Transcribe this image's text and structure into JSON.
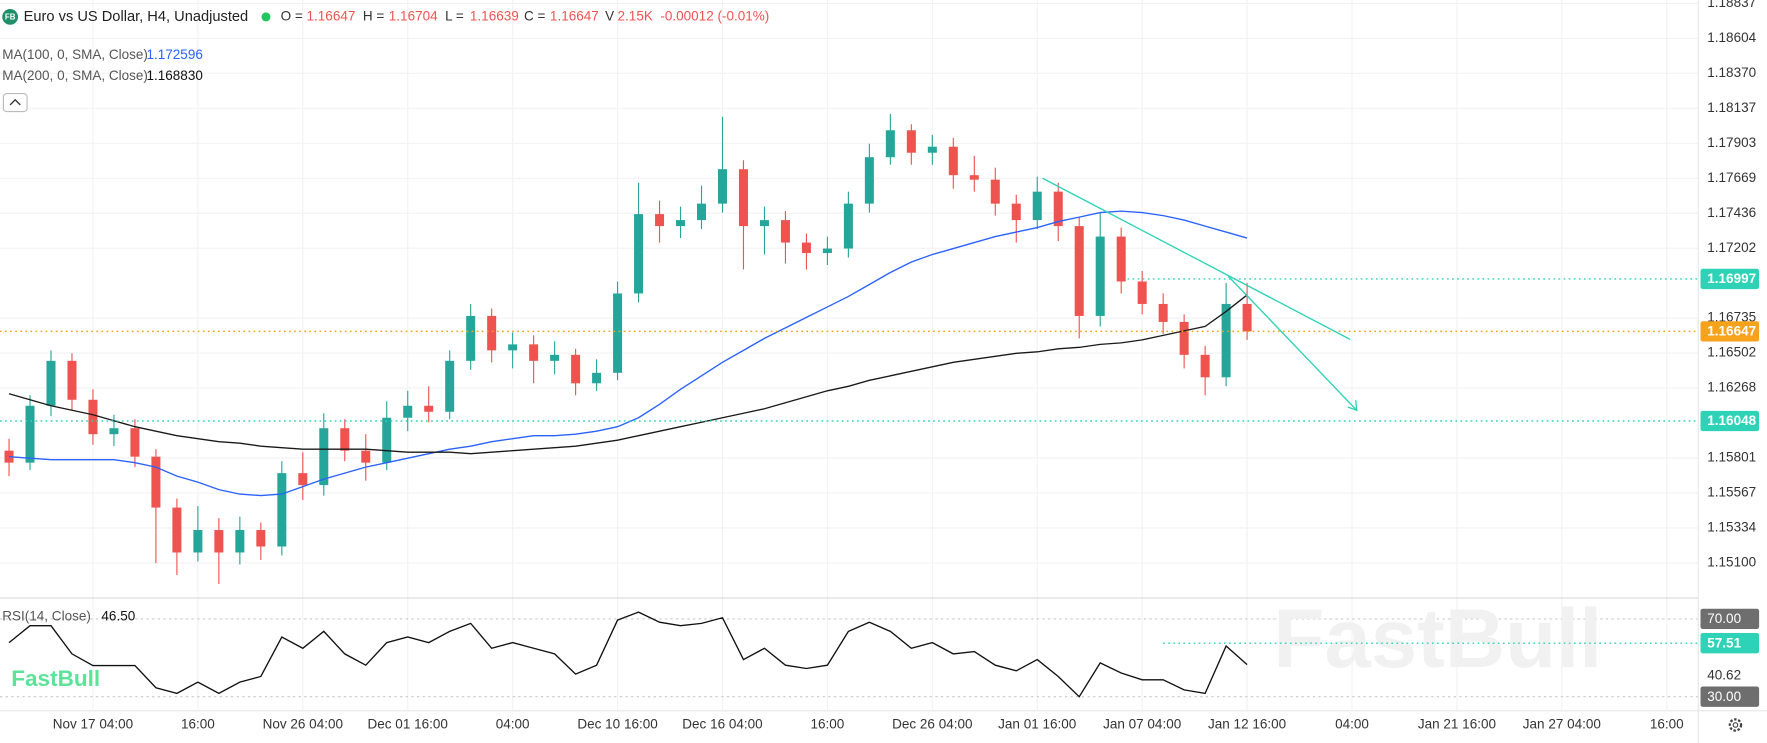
{
  "header": {
    "logo": "FB",
    "symbol": "Euro vs US Dollar, H4, Unadjusted",
    "open_label": "O =",
    "open": 1.16647,
    "high_label": "H =",
    "high": 1.16704,
    "low_label": "L =",
    "low": 1.16639,
    "close_label": "C =",
    "close": 1.16647,
    "volume_label": "V",
    "volume": "2.15K",
    "change": "-0.00012 (-0.01%)"
  },
  "watermark": "FastBull",
  "brand": "FastBull",
  "chart_data": [
    {
      "type": "candlestick",
      "up_color": "#26a69a",
      "down_color": "#ef5350",
      "grid": true,
      "xlim": [
        -0.43,
        80.5
      ],
      "ylim": [
        1.14869,
        1.1886
      ],
      "x_labels": [
        {
          "value": 4,
          "label": "Nov 17 04:00"
        },
        {
          "value": 9,
          "label": "16:00"
        },
        {
          "value": 14,
          "label": "Nov 26 04:00"
        },
        {
          "value": 19,
          "label": "Dec 01 16:00"
        },
        {
          "value": 24,
          "label": "04:00"
        },
        {
          "value": 29,
          "label": "Dec 10 16:00"
        },
        {
          "value": 34,
          "label": "Dec 16 04:00"
        },
        {
          "value": 39,
          "label": "16:00"
        },
        {
          "value": 44,
          "label": "Dec 26 04:00"
        },
        {
          "value": 49,
          "label": "Jan 01 16:00"
        },
        {
          "value": 54,
          "label": "Jan 07 04:00"
        },
        {
          "value": 59,
          "label": "Jan 12 16:00"
        },
        {
          "value": 64,
          "label": "04:00"
        },
        {
          "value": 69,
          "label": "Jan 21 16:00"
        },
        {
          "value": 74,
          "label": "Jan 27 04:00"
        },
        {
          "value": 79,
          "label": "16:00"
        }
      ],
      "yticks": [
        1.18837,
        1.18604,
        {
          "value": 1.1837,
          "label": "1.18370"
        },
        1.18137,
        1.17903,
        1.17669,
        1.17436,
        1.17202,
        1.16735,
        1.16502,
        1.16268,
        1.15801,
        1.15567,
        1.15334,
        {
          "value": 1.151,
          "label": "1.15100"
        }
      ],
      "candles": [
        [
          1.1585,
          1.1593,
          1.1568,
          1.1577
        ],
        [
          1.1577,
          1.1622,
          1.1572,
          1.1615
        ],
        [
          1.1615,
          1.1652,
          1.1608,
          1.1645
        ],
        [
          1.1645,
          1.165,
          1.1612,
          1.1619
        ],
        [
          1.1619,
          1.1626,
          1.1589,
          1.1596
        ],
        [
          1.1596,
          1.1609,
          1.1588,
          1.16
        ],
        [
          1.16,
          1.1606,
          1.1574,
          1.1581
        ],
        [
          1.1581,
          1.1586,
          1.151,
          1.1547
        ],
        [
          1.1547,
          1.1553,
          1.1502,
          1.1517
        ],
        [
          1.1517,
          1.1548,
          1.1511,
          1.1532
        ],
        [
          1.1532,
          1.154,
          1.1496,
          1.1517
        ],
        [
          1.1517,
          1.1541,
          1.1509,
          1.1532
        ],
        [
          1.1532,
          1.1537,
          1.1512,
          1.1521
        ],
        [
          1.1521,
          1.1578,
          1.1515,
          1.157
        ],
        [
          1.157,
          1.1584,
          1.1552,
          1.1562
        ],
        [
          1.1562,
          1.161,
          1.1555,
          1.16
        ],
        [
          1.16,
          1.1606,
          1.1578,
          1.1585
        ],
        [
          1.1585,
          1.1596,
          1.1565,
          1.1577
        ],
        [
          1.1577,
          1.1618,
          1.1572,
          1.1607
        ],
        [
          1.1607,
          1.1625,
          1.1598,
          1.1615
        ],
        [
          1.1615,
          1.1628,
          1.1604,
          1.1611
        ],
        [
          1.1611,
          1.1652,
          1.1606,
          1.1645
        ],
        [
          1.1645,
          1.1683,
          1.1639,
          1.1675
        ],
        [
          1.1675,
          1.168,
          1.1644,
          1.1652
        ],
        [
          1.1652,
          1.1664,
          1.164,
          1.1656
        ],
        [
          1.1656,
          1.1662,
          1.163,
          1.1645
        ],
        [
          1.1645,
          1.1658,
          1.1636,
          1.1649
        ],
        [
          1.1649,
          1.1653,
          1.1622,
          1.163
        ],
        [
          1.163,
          1.1646,
          1.1625,
          1.1637
        ],
        [
          1.1637,
          1.1698,
          1.1632,
          1.169
        ],
        [
          1.169,
          1.1764,
          1.1684,
          1.1743
        ],
        [
          1.1743,
          1.1752,
          1.1724,
          1.1735
        ],
        [
          1.1735,
          1.1748,
          1.1727,
          1.1739
        ],
        [
          1.1739,
          1.1762,
          1.1733,
          1.175
        ],
        [
          1.175,
          1.1808,
          1.1744,
          1.1773
        ],
        [
          1.1773,
          1.1779,
          1.1706,
          1.1735
        ],
        [
          1.1735,
          1.1748,
          1.1716,
          1.1739
        ],
        [
          1.1739,
          1.1745,
          1.171,
          1.1724
        ],
        [
          1.1724,
          1.173,
          1.1706,
          1.1717
        ],
        [
          1.1717,
          1.1728,
          1.1709,
          1.172
        ],
        [
          1.172,
          1.1758,
          1.1714,
          1.175
        ],
        [
          1.175,
          1.179,
          1.1744,
          1.1781
        ],
        [
          1.1781,
          1.181,
          1.1776,
          1.1799
        ],
        [
          1.1799,
          1.1803,
          1.1776,
          1.1784
        ],
        [
          1.1784,
          1.1796,
          1.1776,
          1.1788
        ],
        [
          1.1788,
          1.1794,
          1.176,
          1.1769
        ],
        [
          1.1769,
          1.1782,
          1.1758,
          1.1766
        ],
        [
          1.1766,
          1.1774,
          1.1742,
          1.175
        ],
        [
          1.175,
          1.1756,
          1.1724,
          1.1739
        ],
        [
          1.1739,
          1.1768,
          1.1733,
          1.1758
        ],
        [
          1.1758,
          1.1764,
          1.1725,
          1.1735
        ],
        [
          1.1735,
          1.1741,
          1.166,
          1.1675
        ],
        [
          1.1675,
          1.1744,
          1.1668,
          1.1728
        ],
        [
          1.1728,
          1.1734,
          1.169,
          1.1698
        ],
        [
          1.1698,
          1.1705,
          1.1676,
          1.1683
        ],
        [
          1.1683,
          1.169,
          1.1663,
          1.1671
        ],
        [
          1.1671,
          1.1676,
          1.164,
          1.1649
        ],
        [
          1.1649,
          1.1655,
          1.1622,
          1.1634
        ],
        [
          1.1634,
          1.1697,
          1.1628,
          1.1683
        ],
        [
          1.1683,
          1.1697,
          1.1659,
          1.16647
        ]
      ],
      "series": [
        {
          "name": "MA(100, 0, SMA, Close)",
          "last_label": "1.172596",
          "color": "#2962ff",
          "values": [
            1.1581,
            1.158,
            1.1579,
            1.1579,
            1.1579,
            1.1579,
            1.1577,
            1.1574,
            1.1568,
            1.1564,
            1.1559,
            1.1556,
            1.1555,
            1.1556,
            1.1561,
            1.1566,
            1.157,
            1.1574,
            1.1577,
            1.158,
            1.1583,
            1.1586,
            1.1588,
            1.1591,
            1.1593,
            1.1595,
            1.1595,
            1.1596,
            1.1598,
            1.1601,
            1.1607,
            1.1616,
            1.1626,
            1.1635,
            1.1644,
            1.1652,
            1.166,
            1.1667,
            1.1674,
            1.1681,
            1.1688,
            1.1696,
            1.1704,
            1.1711,
            1.1716,
            1.172,
            1.1724,
            1.1728,
            1.1731,
            1.1734,
            1.1738,
            1.1741,
            1.1744,
            1.1745,
            1.1744,
            1.1742,
            1.1739,
            1.1735,
            1.1731,
            1.1727
          ]
        },
        {
          "name": "MA(200, 0, SMA, Close)",
          "last_label": "1.168830",
          "color": "#1a1a1a",
          "values": [
            1.1623,
            1.1619,
            1.1615,
            1.1612,
            1.1609,
            1.1605,
            1.1601,
            1.1598,
            1.1595,
            1.1593,
            1.1591,
            1.159,
            1.1588,
            1.1587,
            1.1586,
            1.1586,
            1.1586,
            1.1586,
            1.1585,
            1.1584,
            1.1584,
            1.1584,
            1.1583,
            1.1584,
            1.1585,
            1.1586,
            1.1587,
            1.1588,
            1.159,
            1.1592,
            1.1595,
            1.1598,
            1.1601,
            1.1604,
            1.1607,
            1.161,
            1.1613,
            1.1617,
            1.1621,
            1.1625,
            1.1628,
            1.1632,
            1.1635,
            1.1638,
            1.1641,
            1.1644,
            1.1646,
            1.1648,
            1.165,
            1.1651,
            1.1653,
            1.1654,
            1.1656,
            1.1657,
            1.1659,
            1.1662,
            1.1665,
            1.1668,
            1.1678,
            1.1689
          ]
        }
      ],
      "price_lines": [
        {
          "value": 1.16997,
          "color": "#2ed3b7",
          "x_start": 53.3
        },
        {
          "value": 1.16647,
          "color": "#f7a21b",
          "x_start": -0.43
        },
        {
          "value": 1.16048,
          "color": "#2ed3b7",
          "x_start": -0.43
        }
      ]
    },
    {
      "type": "line",
      "ylim": [
        23.0,
        80.4
      ],
      "yticks": [
        40.62
      ],
      "bands": [
        {
          "value": 70,
          "label": "70.00"
        },
        {
          "value": 30,
          "label": "30.00"
        }
      ],
      "series": [
        {
          "name": "RSI(14, Close)",
          "last_label": "46.50",
          "color": "#111111",
          "values": [
            57.8,
            66.5,
            66.5,
            52,
            46,
            46,
            46,
            34.6,
            31.7,
            37.5,
            31.7,
            37.5,
            40.4,
            60.7,
            54.9,
            63.6,
            52,
            46.2,
            57.8,
            60.7,
            57.8,
            63.6,
            67.7,
            54.9,
            57.8,
            54.9,
            52,
            41.6,
            46.2,
            69.4,
            73.5,
            68.3,
            66.5,
            67.7,
            70.6,
            49.1,
            54.9,
            46.2,
            44.5,
            46.2,
            63.6,
            68.3,
            63.6,
            54.9,
            57.8,
            52,
            53.2,
            46.2,
            43.3,
            49.1,
            40.4,
            30,
            47.4,
            42.2,
            38.7,
            38.7,
            33.5,
            31.7,
            56.1,
            46.5
          ]
        }
      ],
      "price_lines": [
        {
          "value": 57.51,
          "color": "#2ed3b7",
          "x_start": 55
        }
      ]
    }
  ]
}
